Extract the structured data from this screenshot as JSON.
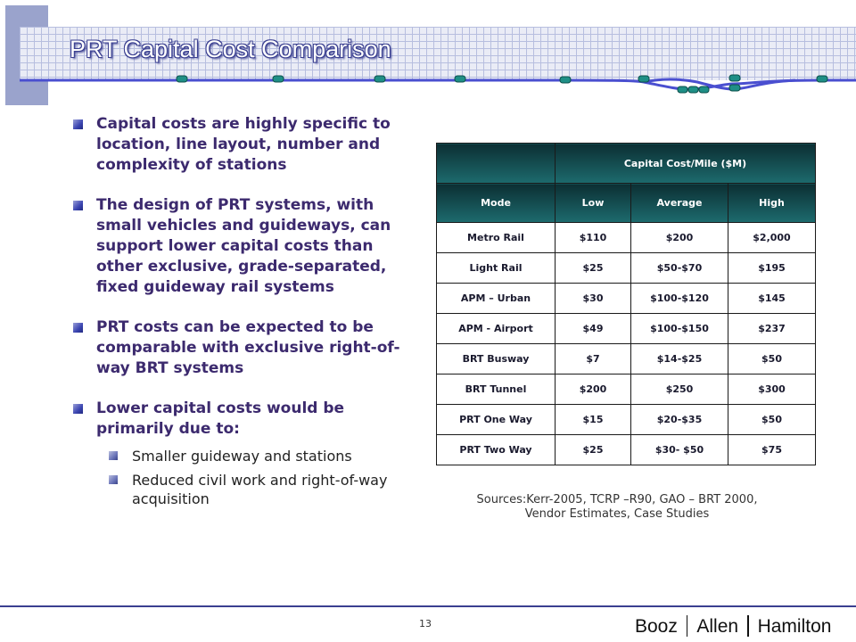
{
  "title": "PRT Capital Cost Comparison",
  "bullets": [
    {
      "text": "Capital costs are highly specific to location, line layout, number and complexity of stations"
    },
    {
      "text": "The design of PRT systems, with small vehicles and guideways, can support lower capital costs than other exclusive, grade-separated, fixed guideway rail systems"
    },
    {
      "text": "PRT costs can be expected to be comparable with exclusive right-of-way BRT systems"
    },
    {
      "text": "Lower capital costs would be primarily due to:",
      "sub": [
        "Smaller guideway and stations",
        "Reduced civil work and right-of-way acquisition"
      ]
    }
  ],
  "table": {
    "group_header": "Capital Cost/Mile ($M)",
    "columns": [
      "Mode",
      "Low",
      "Average",
      "High"
    ],
    "rows": [
      [
        "Metro Rail",
        "$110",
        "$200",
        "$2,000"
      ],
      [
        "Light Rail",
        "$25",
        "$50-$70",
        "$195"
      ],
      [
        "APM – Urban",
        "$30",
        "$100-$120",
        "$145"
      ],
      [
        "APM - Airport",
        "$49",
        "$100-$150",
        "$237"
      ],
      [
        "BRT Busway",
        "$7",
        "$14-$25",
        "$50"
      ],
      [
        "BRT Tunnel",
        "$200",
        "$250",
        "$300"
      ],
      [
        "PRT One Way",
        "$15",
        "$20-$35",
        "$50"
      ],
      [
        "PRT Two Way",
        "$25",
        "$30- $50",
        "$75"
      ]
    ]
  },
  "sources": {
    "line1": "Sources:Kerr-2005, TCRP –R90, GAO – BRT 2000,",
    "line2": "Vendor Estimates, Case Studies"
  },
  "footer": {
    "page_number": "13",
    "logo": [
      "Booz",
      "Allen",
      "Hamilton"
    ]
  },
  "colors": {
    "accent": "#3a3f90",
    "bullet_text": "#3c2a6e",
    "table_header": "#0c2f33"
  }
}
